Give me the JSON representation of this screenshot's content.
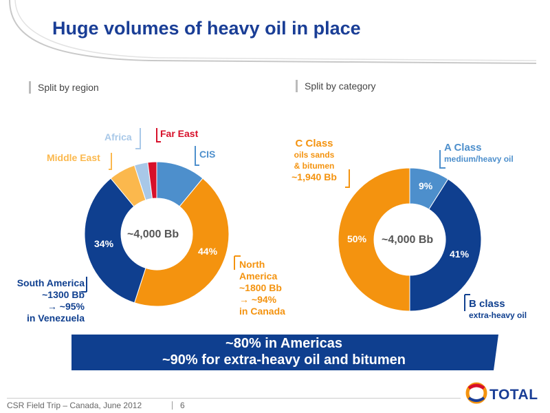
{
  "title": "Huge volumes of heavy oil in place",
  "section_left": "Split by region",
  "section_right": "Split by category",
  "colors": {
    "navy": "#0f3f8f",
    "orange": "#f4930f",
    "steel_blue": "#4d8fcc",
    "light_orange": "#fbb84d",
    "light_blue": "#a8c8e8",
    "red": "#d7102a",
    "title_blue": "#1a3e96"
  },
  "chart_data": [
    {
      "type": "pie",
      "subtype": "donut",
      "center_label": "~4,000 Bb",
      "slices": [
        {
          "name": "CIS",
          "value": 11,
          "color": "#4d8fcc"
        },
        {
          "name": "North America",
          "value": 44,
          "color": "#f4930f"
        },
        {
          "name": "South America",
          "value": 34,
          "color": "#0f3f8f"
        },
        {
          "name": "Middle East",
          "value": 6,
          "color": "#fbb84d"
        },
        {
          "name": "Africa",
          "value": 3,
          "color": "#a8c8e8"
        },
        {
          "name": "Far East",
          "value": 2,
          "color": "#d7102a"
        }
      ],
      "data_labels": [
        "44%",
        "34%"
      ],
      "callouts": {
        "africa": "Africa",
        "far_east": "Far East",
        "middle_east": "Middle East",
        "cis": "CIS",
        "north_america": [
          "North",
          "America",
          "~1800 Bb",
          "→ ~94%",
          "in Canada"
        ],
        "south_america": [
          "South America",
          "~1300 Bb",
          "→ ~95%",
          "in Venezuela"
        ]
      }
    },
    {
      "type": "pie",
      "subtype": "donut",
      "center_label": "~4,000 Bb",
      "slices": [
        {
          "name": "A Class",
          "value": 9,
          "color": "#4d8fcc"
        },
        {
          "name": "B class",
          "value": 41,
          "color": "#0f3f8f"
        },
        {
          "name": "C Class",
          "value": 50,
          "color": "#f4930f"
        }
      ],
      "data_labels": [
        "9%",
        "41%",
        "50%"
      ],
      "callouts": {
        "c_class": [
          "C Class",
          "oils sands",
          "& bitumen",
          "~1,940 Bb"
        ],
        "a_class": [
          "A Class",
          "medium/heavy oil"
        ],
        "b_class": [
          "B class",
          "extra-heavy oil"
        ]
      }
    }
  ],
  "banner": [
    "~80% in Americas",
    "~90% for extra-heavy oil and bitumen"
  ],
  "footer": {
    "text": "CSR Field Trip – Canada, June 2012",
    "page": "6",
    "logo": "TOTAL"
  }
}
